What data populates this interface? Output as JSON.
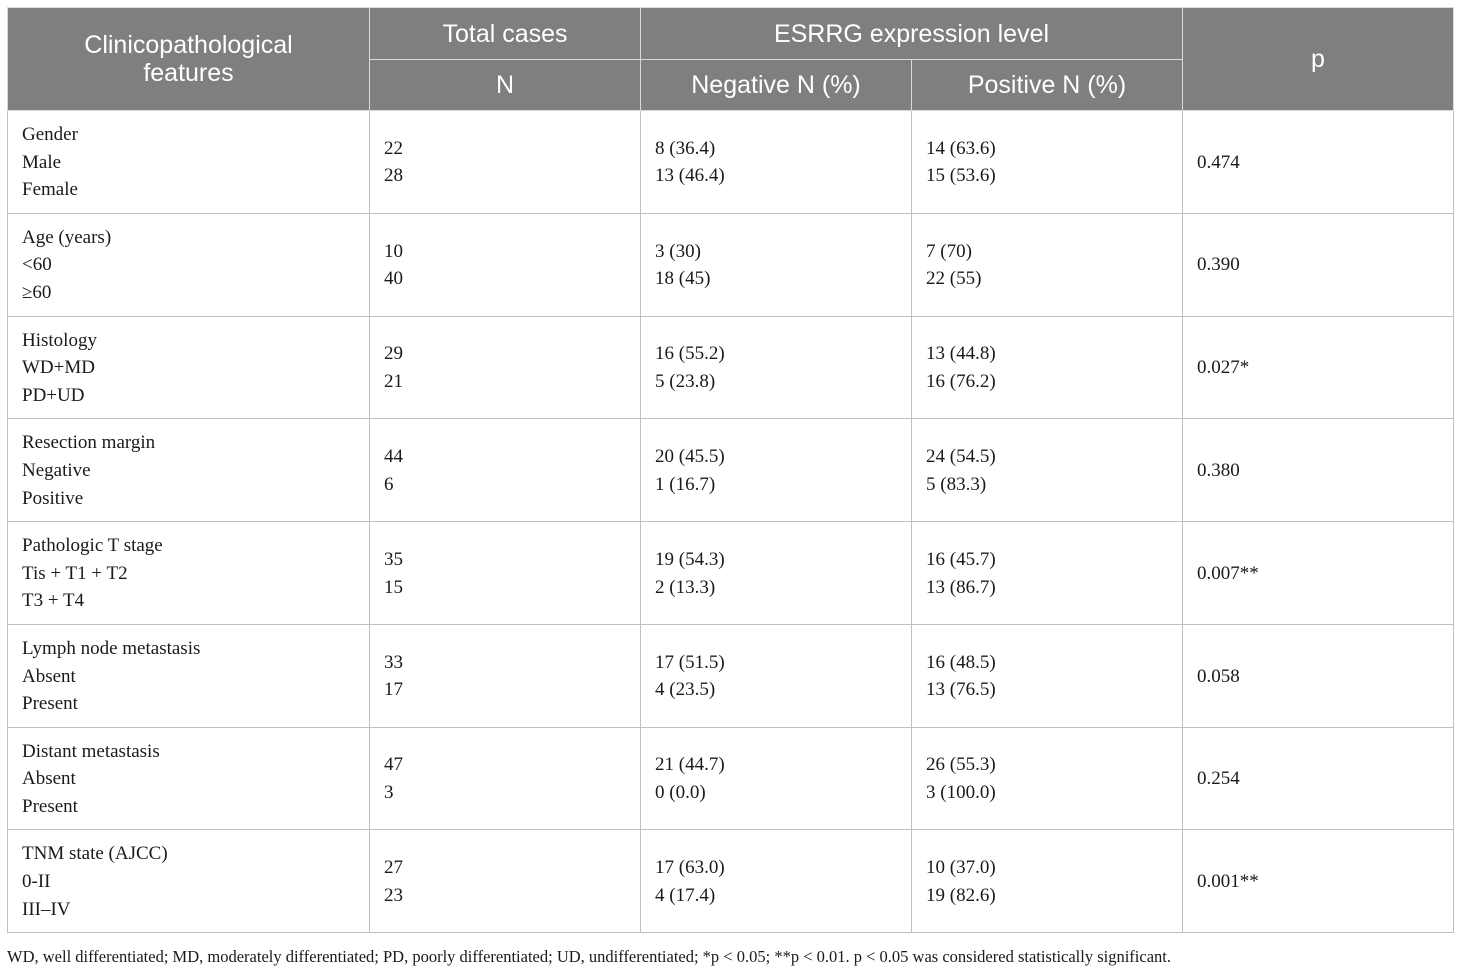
{
  "header": {
    "features": "Clinicopathological features",
    "total_cases": "Total cases",
    "expression_level": "ESRRG expression level",
    "p": "p",
    "n": "N",
    "negative": "Negative N (%)",
    "positive": "Positive N (%)"
  },
  "rows": [
    {
      "labels": [
        "Gender",
        "Male",
        "Female"
      ],
      "total": [
        "22",
        "28"
      ],
      "negative": [
        "8 (36.4)",
        "13 (46.4)"
      ],
      "positive": [
        "14 (63.6)",
        "15 (53.6)"
      ],
      "p": "0.474"
    },
    {
      "labels": [
        "Age (years)",
        "<60",
        "≥60"
      ],
      "total": [
        "10",
        "40"
      ],
      "negative": [
        "3 (30)",
        "18 (45)"
      ],
      "positive": [
        "7 (70)",
        "22 (55)"
      ],
      "p": "0.390"
    },
    {
      "labels": [
        "Histology",
        "WD+MD",
        "PD+UD"
      ],
      "total": [
        "29",
        "21"
      ],
      "negative": [
        "16 (55.2)",
        "5 (23.8)"
      ],
      "positive": [
        "13 (44.8)",
        "16 (76.2)"
      ],
      "p": "0.027*"
    },
    {
      "labels": [
        "Resection margin",
        "Negative",
        "Positive"
      ],
      "total": [
        "44",
        "6"
      ],
      "negative": [
        "20 (45.5)",
        "1 (16.7)"
      ],
      "positive": [
        "24 (54.5)",
        "5 (83.3)"
      ],
      "p": "0.380"
    },
    {
      "labels": [
        "Pathologic T stage",
        "Tis + T1 + T2",
        "T3 + T4"
      ],
      "total": [
        "35",
        "15"
      ],
      "negative": [
        "19 (54.3)",
        "2 (13.3)"
      ],
      "positive": [
        "16 (45.7)",
        "13 (86.7)"
      ],
      "p": "0.007**"
    },
    {
      "labels": [
        "Lymph node metastasis",
        "Absent",
        "Present"
      ],
      "total": [
        "33",
        "17"
      ],
      "negative": [
        "17 (51.5)",
        "4 (23.5)"
      ],
      "positive": [
        "16 (48.5)",
        "13 (76.5)"
      ],
      "p": "0.058"
    },
    {
      "labels": [
        "Distant metastasis",
        "Absent",
        "Present"
      ],
      "total": [
        "47",
        "3"
      ],
      "negative": [
        "21 (44.7)",
        "0 (0.0)"
      ],
      "positive": [
        "26 (55.3)",
        "3 (100.0)"
      ],
      "p": "0.254"
    },
    {
      "labels": [
        "TNM state (AJCC)",
        "0-II",
        "III–IV"
      ],
      "total": [
        "27",
        "23"
      ],
      "negative": [
        "17 (63.0)",
        "4 (17.4)"
      ],
      "positive": [
        "10 (37.0)",
        "19 (82.6)"
      ],
      "p": "0.001**"
    }
  ],
  "footnote": "WD, well differentiated; MD, moderately differentiated; PD, poorly differentiated; UD, undifferentiated; *p < 0.05; **p < 0.01. p < 0.05 was considered statistically significant."
}
